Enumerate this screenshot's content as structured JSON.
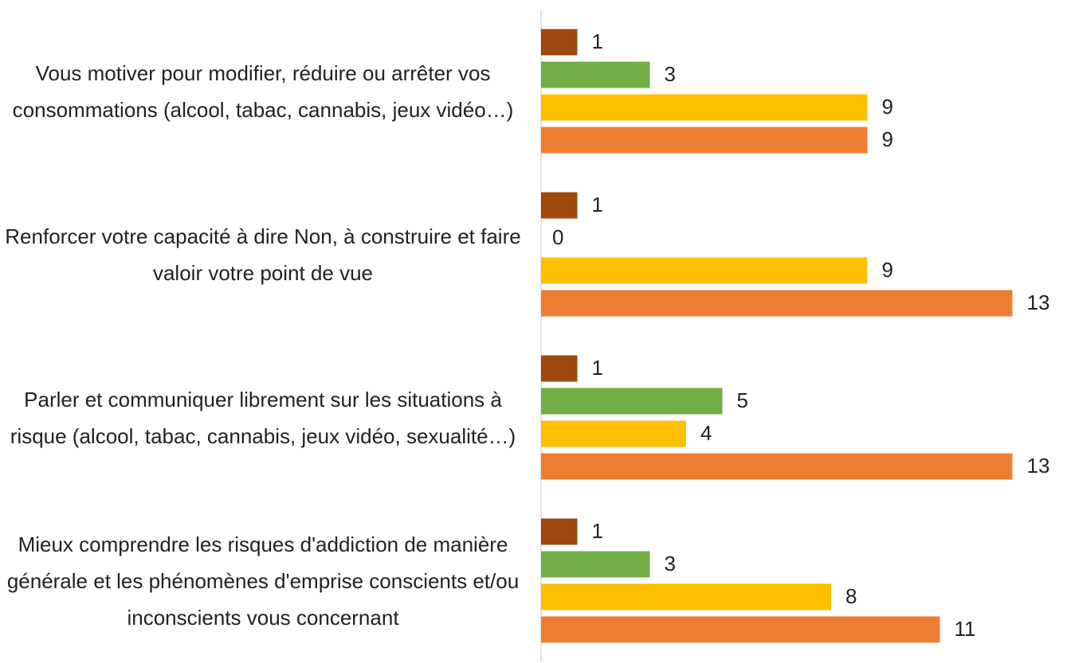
{
  "chart_data": {
    "type": "bar",
    "orientation": "horizontal",
    "categories": [
      "Vous motiver pour modifier, réduire ou arrêter vos consommations (alcool, tabac, cannabis, jeux vidéo…)",
      "Renforcer votre capacité à dire Non, à construire et faire valoir votre point de vue",
      "Parler et communiquer librement sur les situations à risque (alcool, tabac, cannabis, jeux vidéo, sexualité…)",
      "Mieux comprendre les risques d'addiction de manière générale et les phénomènes d'emprise conscients et/ou inconscients vous concernant"
    ],
    "series": [
      {
        "color": "#9e480e",
        "values": [
          1,
          1,
          1,
          1
        ]
      },
      {
        "color": "#70ad47",
        "values": [
          3,
          0,
          5,
          3
        ]
      },
      {
        "color": "#ffc000",
        "values": [
          9,
          9,
          4,
          8
        ]
      },
      {
        "color": "#ed7d31",
        "values": [
          9,
          13,
          13,
          11
        ]
      }
    ],
    "xlim": [
      0,
      14
    ]
  }
}
